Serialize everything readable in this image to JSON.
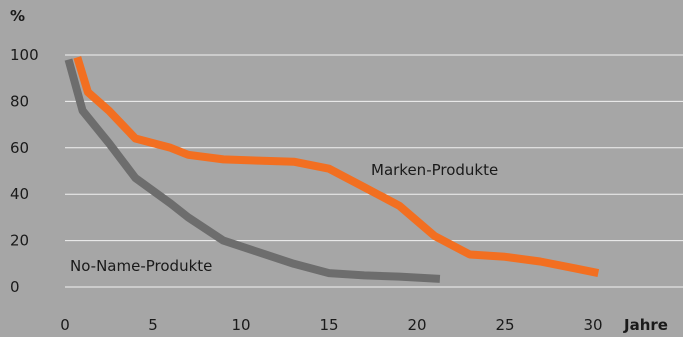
{
  "chart_data": {
    "type": "line",
    "xlabel": "Jahre",
    "ylabel": "%",
    "xlim": [
      0,
      33
    ],
    "ylim": [
      0,
      100
    ],
    "xticks": [
      0,
      5,
      10,
      15,
      20,
      25,
      30
    ],
    "yticks": [
      0,
      20,
      40,
      60,
      80,
      100
    ],
    "grid": "horizontal",
    "series": [
      {
        "name": "No-Name-Produkte",
        "color": "#6d6d6d",
        "points": [
          [
            0.2,
            98
          ],
          [
            1,
            76
          ],
          [
            2.5,
            62
          ],
          [
            4,
            47
          ],
          [
            6,
            36
          ],
          [
            7,
            30
          ],
          [
            9,
            20
          ],
          [
            11,
            15
          ],
          [
            13,
            10
          ],
          [
            15,
            6
          ],
          [
            17,
            5
          ],
          [
            19,
            4.5
          ],
          [
            21.3,
            3.5
          ]
        ]
      },
      {
        "name": "Marken-Produkte",
        "color": "#f26f21",
        "points": [
          [
            0.7,
            99
          ],
          [
            1.3,
            84
          ],
          [
            2.5,
            76
          ],
          [
            4,
            64
          ],
          [
            6,
            60
          ],
          [
            7,
            57
          ],
          [
            9,
            55
          ],
          [
            11,
            54.5
          ],
          [
            13,
            54
          ],
          [
            15,
            51
          ],
          [
            17,
            43
          ],
          [
            19,
            35
          ],
          [
            21,
            22
          ],
          [
            23,
            14
          ],
          [
            25,
            13
          ],
          [
            27,
            11
          ],
          [
            29,
            8
          ],
          [
            30.3,
            6
          ]
        ]
      }
    ]
  }
}
